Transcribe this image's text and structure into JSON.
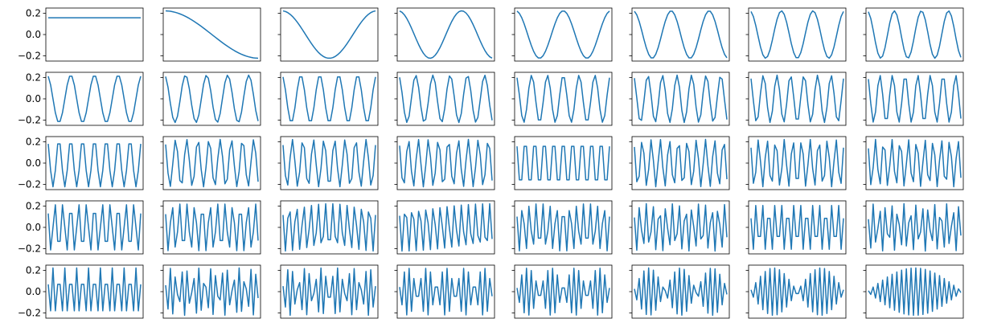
{
  "figure": {
    "rows": 5,
    "cols": 8,
    "series_color": "#1f77b4",
    "sharey": true,
    "yticks_shown_on": "first-column",
    "xticks": "hidden",
    "ytick_labels": [
      "0.2",
      "0.0",
      "−0.2"
    ]
  },
  "chart_data": {
    "type": "line",
    "description_of_panels": "40 small line plots, panel k (0..39, row-major) shows the k-th DCT-II basis vector of length 40",
    "n_points": 40,
    "x": [
      0,
      1,
      2,
      3,
      4,
      5,
      6,
      7,
      8,
      9,
      10,
      11,
      12,
      13,
      14,
      15,
      16,
      17,
      18,
      19,
      20,
      21,
      22,
      23,
      24,
      25,
      26,
      27,
      28,
      29,
      30,
      31,
      32,
      33,
      34,
      35,
      36,
      37,
      38,
      39
    ],
    "panel_index": [
      0,
      1,
      2,
      3,
      4,
      5,
      6,
      7,
      8,
      9,
      10,
      11,
      12,
      13,
      14,
      15,
      16,
      17,
      18,
      19,
      20,
      21,
      22,
      23,
      24,
      25,
      26,
      27,
      28,
      29,
      30,
      31,
      32,
      33,
      34,
      35,
      36,
      37,
      38,
      39
    ],
    "formula": "y_k(n) = c_k * cos(pi * (2n + 1) * k / 80), c_0 = sqrt(1/40), c_k = sqrt(2/40)",
    "ylim": [
      -0.25,
      0.25
    ],
    "yticks": [
      0.2,
      0.0,
      -0.2
    ]
  }
}
